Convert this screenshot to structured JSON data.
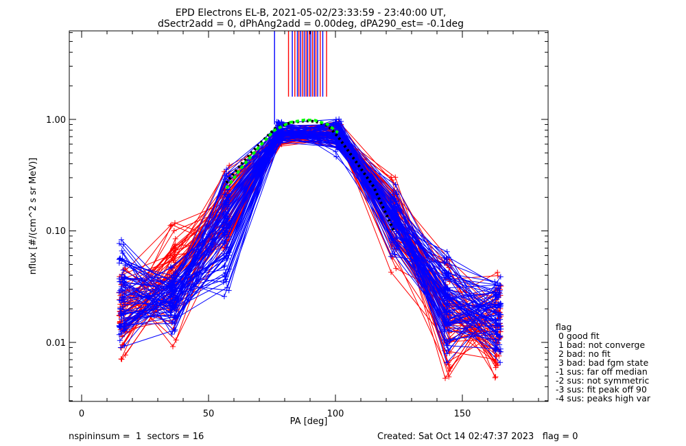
{
  "colors": {
    "background": "#ffffff",
    "axes": "#000000",
    "series_red": "#ff0000",
    "series_blue": "#0000ff",
    "fit_curve": "#00ff00",
    "median_curve": "#000000"
  },
  "chart_data": {
    "type": "line",
    "title_lines": [
      "EPD Electrons EL-B, 2021-05-02/23:33:59 - 23:40:00 UT,",
      "dSectr2add = 0, dPhAng2add = 0.00deg, dPA290_est=  -0.1deg"
    ],
    "xlabel": "PA [deg]",
    "ylabel": "nflux [#/(cm^2 s sr MeV)]",
    "xlim": [
      -5,
      185
    ],
    "ylim": [
      0.003,
      6
    ],
    "yscale": "log",
    "x_ticks": [
      0,
      50,
      100,
      150
    ],
    "x_tick_labels": [
      "0",
      "50",
      "100",
      "150"
    ],
    "y_ticks": [
      0.01,
      0.1,
      1.0
    ],
    "y_tick_labels": [
      "0.01",
      "0.10",
      "1.00"
    ],
    "grid": false,
    "pa_bins": [
      16,
      36,
      57,
      78,
      101,
      123,
      144,
      164
    ],
    "envelope": {
      "red": {
        "low": [
          0.0055,
          0.009,
          0.05,
          0.55,
          0.55,
          0.042,
          0.0038,
          0.004
        ],
        "high": [
          0.065,
          0.16,
          0.44,
          0.95,
          0.98,
          0.38,
          0.08,
          0.052
        ]
      },
      "blue": {
        "low": [
          0.0065,
          0.011,
          0.025,
          0.58,
          0.45,
          0.05,
          0.0055,
          0.0055
        ],
        "high": [
          0.1,
          0.058,
          0.45,
          1.0,
          1.05,
          0.3,
          0.075,
          0.045
        ]
      }
    },
    "series_counts": {
      "red": 55,
      "blue": 75
    },
    "fit_curve": {
      "name": "fit",
      "x": [
        57,
        63,
        70,
        76,
        82,
        88,
        92,
        97,
        101
      ],
      "y": [
        0.24,
        0.37,
        0.57,
        0.8,
        0.94,
        0.99,
        0.98,
        0.9,
        0.76
      ]
    },
    "median_curve": {
      "name": "median",
      "x": [
        57,
        63,
        70,
        76,
        82,
        88,
        92,
        97,
        101,
        108,
        115,
        123
      ],
      "y": [
        0.27,
        0.4,
        0.6,
        0.82,
        0.93,
        0.97,
        0.96,
        0.88,
        0.7,
        0.42,
        0.25,
        0.1
      ]
    },
    "spikes": {
      "color_order": [
        "blue",
        "red"
      ],
      "x_positions": [
        76,
        81.5,
        83,
        84,
        85,
        85.6,
        86.3,
        87,
        87.7,
        88.4,
        89,
        89.7,
        90.3,
        91,
        91.7,
        92.3,
        93,
        94,
        95,
        96.5
      ]
    }
  },
  "legend": {
    "title": "flag",
    "items": [
      " 0 good fit",
      " 1 bad: not converge",
      " 2 bad: no fit",
      " 3 bad: bad fgm state",
      "-1 sus: far off median",
      "-2 sus: not symmetric",
      "-3 sus: fit peak off 90",
      "-4 sus: peaks high var"
    ]
  },
  "footer": {
    "left": "nspininsum =  1  sectors = 16",
    "right": "Created: Sat Oct 14 02:47:37 2023   flag = 0"
  }
}
